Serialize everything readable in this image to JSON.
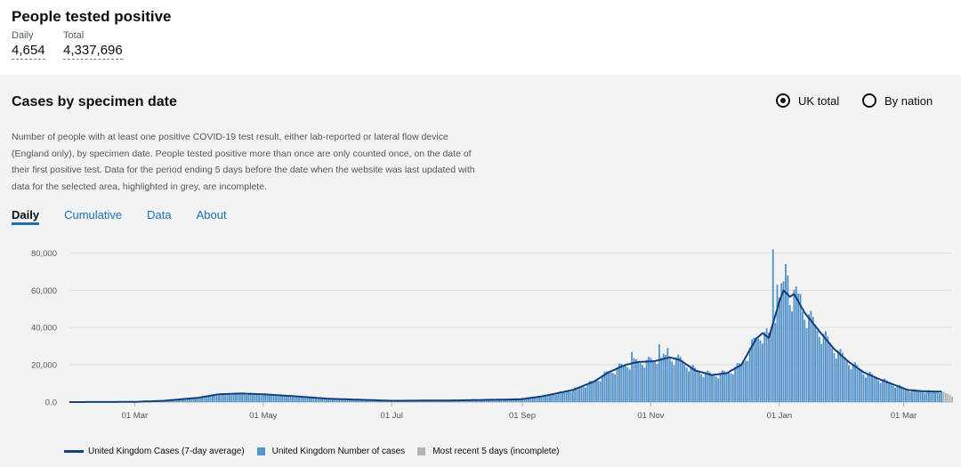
{
  "header": {
    "title": "People tested positive",
    "daily_label": "Daily",
    "daily_value": "4,654",
    "total_label": "Total",
    "total_value": "4,337,696"
  },
  "card": {
    "title": "Cases by specimen date",
    "radio_uk": "UK total",
    "radio_nation": "By nation",
    "selected": "UK total",
    "description": "Number of people with at least one positive COVID-19 test result, either lab-reported or lateral flow device (England only), by specimen date. People tested positive more than once are only counted once, on the date of their first positive test. Data for the period ending 5 days before the date when the website was last updated with data for the selected area, highlighted in grey, are incomplete.",
    "tabs": [
      "Daily",
      "Cumulative",
      "Data",
      "About"
    ],
    "active_tab": "Daily"
  },
  "colors": {
    "bar": "#5694ca",
    "line": "#12407f",
    "incomplete": "#b1b4b6",
    "link": "#1d70b8"
  },
  "chart_data": {
    "type": "bar",
    "title": "",
    "xlabel": "",
    "ylabel": "",
    "ylim": [
      0,
      85000
    ],
    "yticks": [
      0,
      20000,
      40000,
      60000,
      80000
    ],
    "ytick_labels": [
      "0.0",
      "20,000",
      "40,000",
      "60,000",
      "80,000"
    ],
    "x_range": [
      "2020-01-30",
      "2021-03-24"
    ],
    "xtick_dates": [
      "2020-03-01",
      "2020-05-01",
      "2020-07-01",
      "2020-09-01",
      "2020-11-01",
      "2021-01-01",
      "2021-03-01"
    ],
    "xtick_labels": [
      "01 Mar",
      "01 May",
      "01 Jul",
      "01 Sep",
      "01 Nov",
      "01 Jan",
      "01 Mar"
    ],
    "series": [
      {
        "name": "United Kingdom Cases (7-day average)",
        "type": "line"
      },
      {
        "name": "United Kingdom Number of cases",
        "type": "bar"
      },
      {
        "name": "Most recent 5 days (incomplete)",
        "type": "bar"
      }
    ],
    "avg_points": [
      [
        "2020-01-30",
        0
      ],
      [
        "2020-03-01",
        100
      ],
      [
        "2020-03-15",
        700
      ],
      [
        "2020-03-31",
        2300
      ],
      [
        "2020-04-10",
        4200
      ],
      [
        "2020-04-20",
        4600
      ],
      [
        "2020-05-01",
        4200
      ],
      [
        "2020-05-15",
        3200
      ],
      [
        "2020-06-01",
        1800
      ],
      [
        "2020-07-01",
        700
      ],
      [
        "2020-08-01",
        900
      ],
      [
        "2020-08-31",
        1500
      ],
      [
        "2020-09-10",
        3000
      ],
      [
        "2020-09-25",
        6500
      ],
      [
        "2020-10-05",
        11000
      ],
      [
        "2020-10-12",
        16000
      ],
      [
        "2020-10-20",
        20000
      ],
      [
        "2020-10-26",
        21500
      ],
      [
        "2020-11-03",
        22000
      ],
      [
        "2020-11-10",
        24000
      ],
      [
        "2020-11-15",
        22500
      ],
      [
        "2020-11-22",
        17000
      ],
      [
        "2020-11-30",
        14500
      ],
      [
        "2020-12-07",
        15500
      ],
      [
        "2020-12-14",
        20000
      ],
      [
        "2020-12-21",
        34000
      ],
      [
        "2020-12-24",
        37000
      ],
      [
        "2020-12-27",
        34500
      ],
      [
        "2021-01-01",
        54000
      ],
      [
        "2021-01-03",
        60000
      ],
      [
        "2021-01-06",
        56500
      ],
      [
        "2021-01-08",
        58000
      ],
      [
        "2021-01-13",
        48000
      ],
      [
        "2021-01-20",
        38000
      ],
      [
        "2021-01-27",
        28500
      ],
      [
        "2021-02-03",
        21500
      ],
      [
        "2021-02-10",
        16000
      ],
      [
        "2021-02-17",
        12500
      ],
      [
        "2021-02-24",
        9500
      ],
      [
        "2021-03-03",
        6500
      ],
      [
        "2021-03-10",
        5800
      ],
      [
        "2021-03-19",
        5600
      ]
    ],
    "bar_spikes": [
      [
        "2020-12-29",
        82000
      ],
      [
        "2020-12-31",
        63000
      ],
      [
        "2021-01-04",
        74000
      ],
      [
        "2021-01-05",
        68000
      ],
      [
        "2021-01-09",
        62000
      ],
      [
        "2021-01-11",
        58000
      ],
      [
        "2020-11-05",
        31000
      ],
      [
        "2020-11-09",
        29000
      ],
      [
        "2020-10-23",
        27000
      ]
    ],
    "incomplete_from": "2021-03-20",
    "incomplete_values": [
      5500,
      4900,
      4500,
      3900,
      2800
    ]
  }
}
